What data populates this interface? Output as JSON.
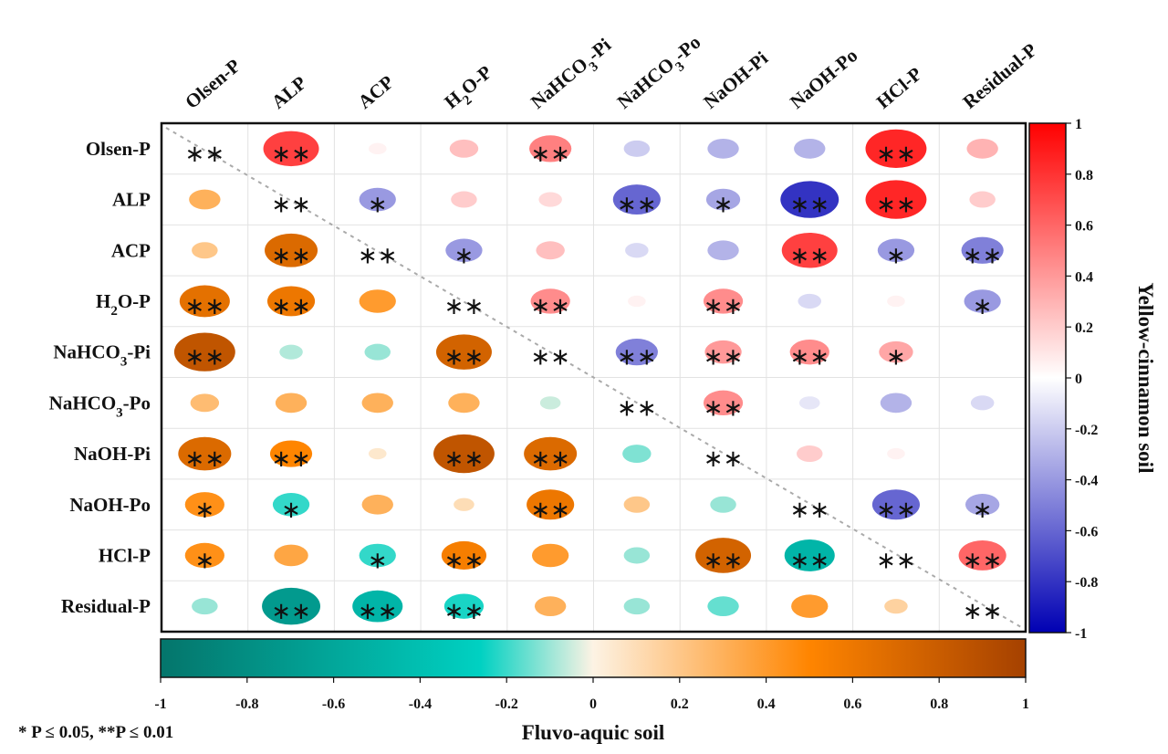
{
  "chart_data": {
    "type": "heatmap",
    "title": "",
    "variables": [
      "Olsen-P",
      "ALP",
      "ACP",
      "H2O-P",
      "NaHCO3-Pi",
      "NaHCO3-Po",
      "NaOH-Pi",
      "NaOH-Po",
      "HCl-P",
      "Residual-P"
    ],
    "upper_triangle_soil": "Yellow-cinnamon soil",
    "lower_triangle_soil": "Fluvo-aquic soil",
    "significance_note": "* P ≤ 0.05, **P ≤ 0.01",
    "colorbar_upper": {
      "title": "Yellow-cinnamon soil",
      "range": [
        -1,
        1
      ],
      "ticks": [
        "1",
        "0.8",
        "0.6",
        "0.4",
        "0.2",
        "0",
        "-0.2",
        "-0.4",
        "-0.6",
        "-0.8",
        "-1"
      ],
      "colors": [
        "#0000b3",
        "#ffffff",
        "#ff0000"
      ]
    },
    "colorbar_lower": {
      "title": "Fluvo-aquic soil",
      "range": [
        -1,
        1
      ],
      "ticks": [
        "-1",
        "-0.8",
        "-0.6",
        "-0.4",
        "-0.2",
        "0",
        "0.2",
        "0.4",
        "0.6",
        "0.8",
        "1"
      ],
      "colors": [
        "#04756b",
        "#00d1c2",
        "#fdf3e4",
        "#ff8500",
        "#a54100"
      ]
    },
    "matrix": [
      [
        1.0,
        0.75,
        0.05,
        0.25,
        0.5,
        -0.2,
        -0.3,
        -0.3,
        0.85,
        0.3
      ],
      [
        0.3,
        1.0,
        -0.4,
        0.2,
        0.15,
        -0.6,
        -0.35,
        -0.8,
        0.85,
        0.2
      ],
      [
        0.2,
        0.7,
        1.0,
        -0.4,
        0.25,
        -0.15,
        -0.3,
        0.75,
        -0.4,
        -0.5
      ],
      [
        0.65,
        0.6,
        0.4,
        1.0,
        0.45,
        0.05,
        0.45,
        -0.15,
        0.05,
        -0.4
      ],
      [
        0.85,
        -0.15,
        -0.2,
        0.75,
        1.0,
        -0.5,
        0.4,
        0.45,
        0.35,
        0.0
      ],
      [
        0.25,
        0.3,
        0.3,
        0.3,
        -0.1,
        1.0,
        0.45,
        -0.1,
        -0.3,
        -0.15
      ],
      [
        0.7,
        0.5,
        0.05,
        0.85,
        0.7,
        -0.25,
        1.0,
        0.2,
        0.05,
        0.0
      ],
      [
        0.45,
        -0.4,
        0.3,
        0.1,
        0.6,
        0.2,
        -0.2,
        1.0,
        -0.6,
        -0.35
      ],
      [
        0.45,
        0.35,
        -0.4,
        0.55,
        0.4,
        -0.2,
        0.75,
        -0.65,
        1.0,
        0.6
      ],
      [
        -0.2,
        -0.8,
        -0.65,
        -0.45,
        0.3,
        -0.2,
        -0.3,
        0.4,
        0.15,
        1.0
      ]
    ],
    "significance": [
      [
        "**",
        "**",
        "",
        "",
        "**",
        "",
        "",
        "",
        "**",
        ""
      ],
      [
        "",
        "**",
        "*",
        "",
        "",
        "**",
        "*",
        "**",
        "**",
        ""
      ],
      [
        "",
        "**",
        "**",
        "*",
        "",
        "",
        "",
        "**",
        "*",
        "**"
      ],
      [
        "**",
        "**",
        "",
        "**",
        "**",
        "",
        "**",
        "",
        "",
        "*"
      ],
      [
        "**",
        "",
        "",
        "**",
        "**",
        "**",
        "**",
        "**",
        "*",
        ""
      ],
      [
        "",
        "",
        "",
        "",
        "",
        "**",
        "**",
        "",
        "",
        ""
      ],
      [
        "**",
        "**",
        "",
        "**",
        "**",
        "",
        "**",
        "",
        "",
        ""
      ],
      [
        "*",
        "*",
        "",
        "",
        "**",
        "",
        "",
        "**",
        "**",
        "*"
      ],
      [
        "*",
        "",
        "*",
        "**",
        "",
        "",
        "**",
        "**",
        "**",
        "**"
      ],
      [
        "",
        "**",
        "**",
        "**",
        "",
        "",
        "",
        "",
        "",
        "**"
      ]
    ]
  }
}
